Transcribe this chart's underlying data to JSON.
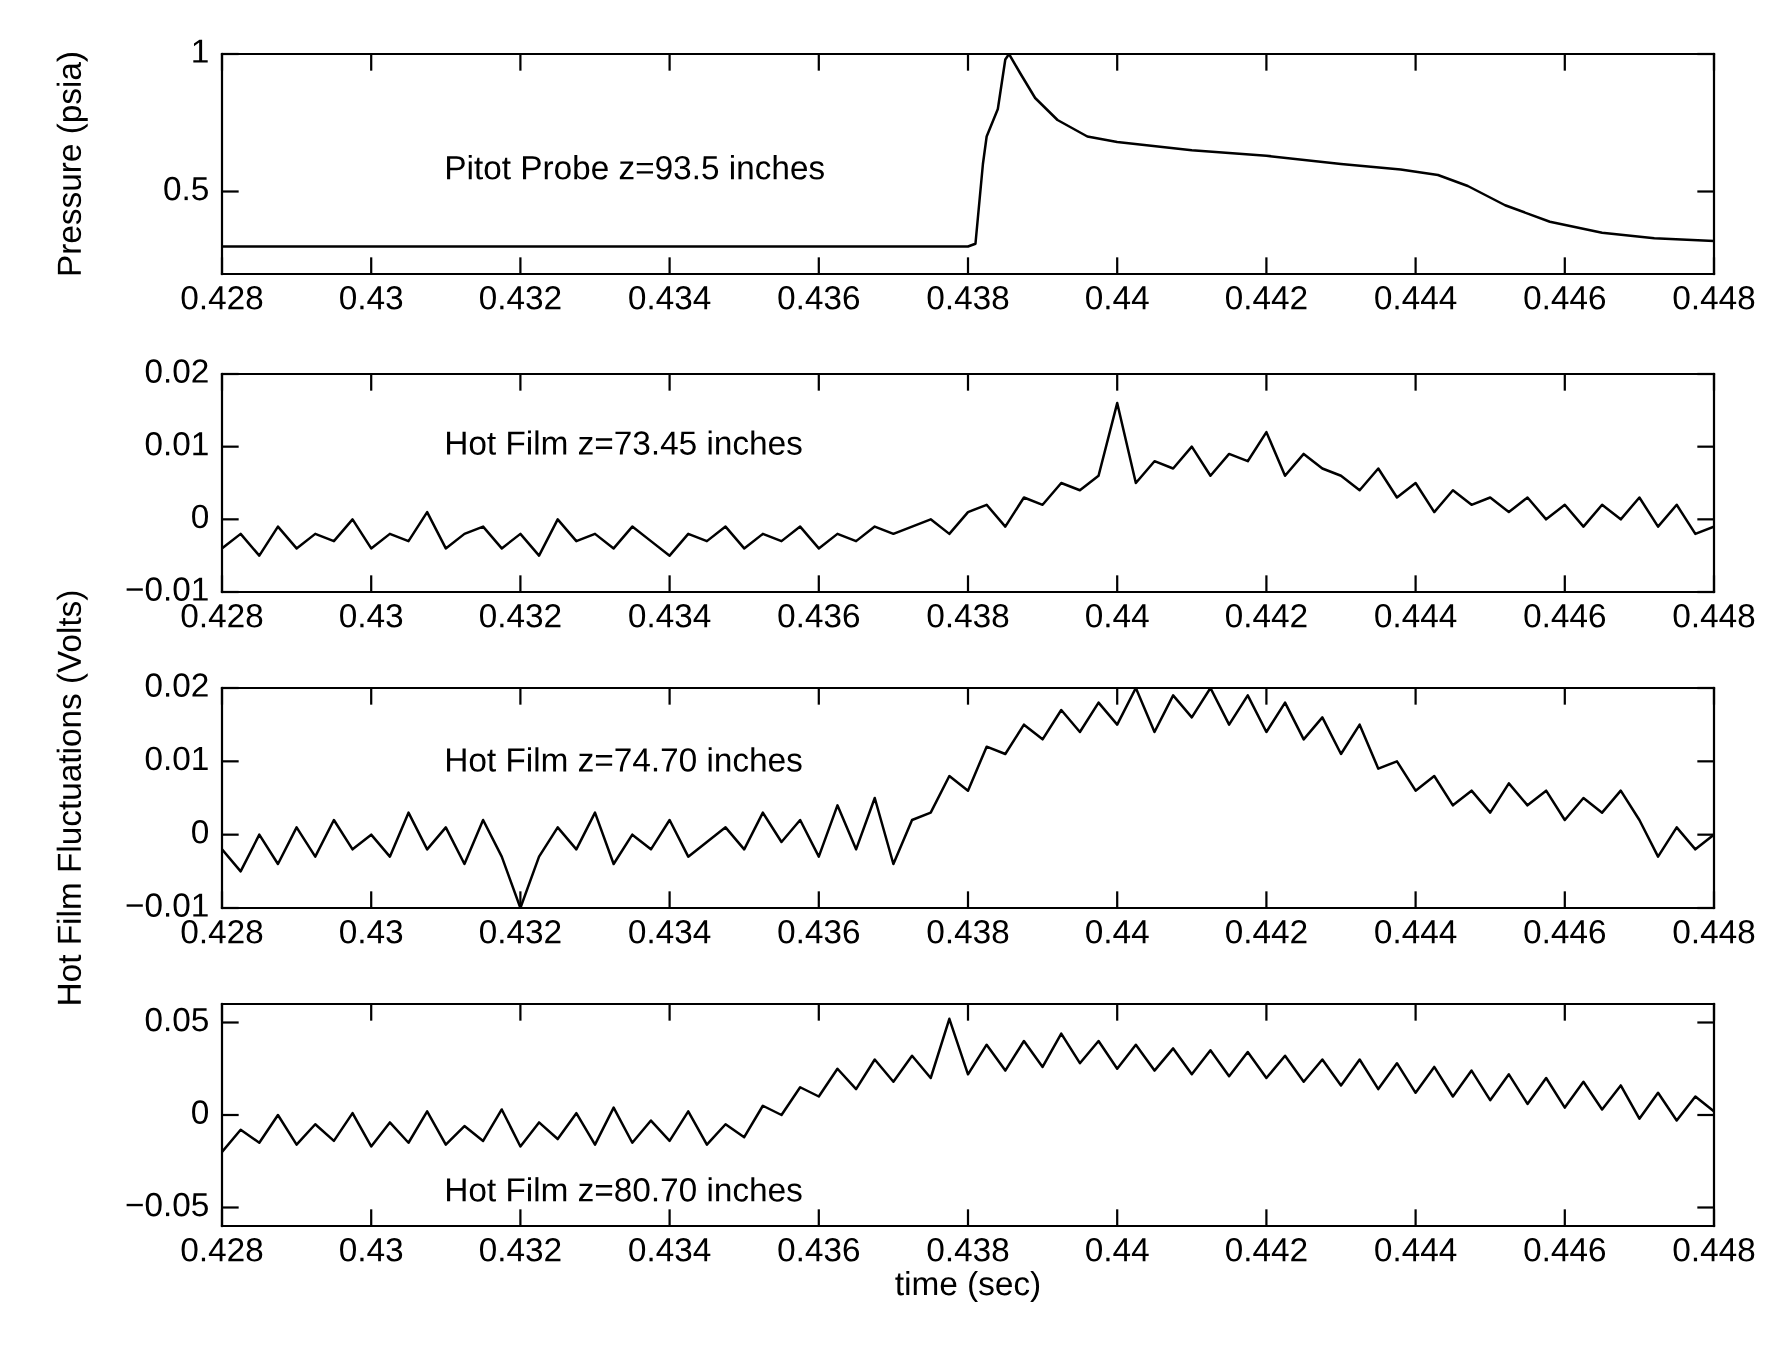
{
  "chart_data": [
    {
      "type": "line",
      "ylabel": "Pressure (psia)",
      "annotations": [
        "Pitot Probe z=93.5 inches"
      ],
      "color": "#000000",
      "x": [
        0.428,
        0.438,
        0.4381,
        0.4382,
        0.43825,
        0.4384,
        0.4385,
        0.43855,
        0.4387,
        0.4389,
        0.4392,
        0.4396,
        0.44,
        0.441,
        0.442,
        0.443,
        0.4438,
        0.4443,
        0.4447,
        0.4452,
        0.4458,
        0.4465,
        0.4472,
        0.448
      ],
      "values": [
        0.3,
        0.3,
        0.31,
        0.6,
        0.7,
        0.8,
        0.98,
        1.0,
        0.93,
        0.84,
        0.76,
        0.7,
        0.68,
        0.65,
        0.63,
        0.6,
        0.58,
        0.56,
        0.52,
        0.45,
        0.39,
        0.35,
        0.33,
        0.32
      ],
      "xlim": [
        0.428,
        0.448
      ],
      "xticks": [
        0.428,
        0.43,
        0.432,
        0.434,
        0.436,
        0.438,
        0.44,
        0.442,
        0.444,
        0.446,
        0.448
      ],
      "ylim": [
        0.2,
        1
      ],
      "yticks": [
        0.5,
        1
      ],
      "grid": false,
      "legend": false
    },
    {
      "type": "line",
      "annotations": [
        "Hot Film z=73.45 inches"
      ],
      "color": "#000000",
      "x": [
        0.428,
        0.42825,
        0.4285,
        0.42875,
        0.429,
        0.42925,
        0.4295,
        0.42975,
        0.43,
        0.43025,
        0.4305,
        0.43075,
        0.431,
        0.43125,
        0.4315,
        0.43175,
        0.432,
        0.43225,
        0.4325,
        0.43275,
        0.433,
        0.43325,
        0.4335,
        0.43375,
        0.434,
        0.43425,
        0.4345,
        0.43475,
        0.435,
        0.43525,
        0.4355,
        0.43575,
        0.436,
        0.43625,
        0.4365,
        0.43675,
        0.437,
        0.43725,
        0.4375,
        0.43775,
        0.438,
        0.43825,
        0.4385,
        0.43875,
        0.439,
        0.43925,
        0.4395,
        0.43975,
        0.44,
        0.44025,
        0.4405,
        0.44075,
        0.441,
        0.44125,
        0.4415,
        0.44175,
        0.442,
        0.44225,
        0.4425,
        0.44275,
        0.443,
        0.44325,
        0.4435,
        0.44375,
        0.444,
        0.44425,
        0.4445,
        0.44475,
        0.445,
        0.44525,
        0.4455,
        0.44575,
        0.446,
        0.44625,
        0.4465,
        0.44675,
        0.447,
        0.44725,
        0.4475,
        0.44775,
        0.448
      ],
      "values": [
        -0.004,
        -0.002,
        -0.005,
        -0.001,
        -0.004,
        -0.002,
        -0.003,
        0.0,
        -0.004,
        -0.002,
        -0.003,
        0.001,
        -0.004,
        -0.002,
        -0.001,
        -0.004,
        -0.002,
        -0.005,
        0.0,
        -0.003,
        -0.002,
        -0.004,
        -0.001,
        -0.003,
        -0.005,
        -0.002,
        -0.003,
        -0.001,
        -0.004,
        -0.002,
        -0.003,
        -0.001,
        -0.004,
        -0.002,
        -0.003,
        -0.001,
        -0.002,
        -0.001,
        0.0,
        -0.002,
        0.001,
        0.002,
        -0.001,
        0.003,
        0.002,
        0.005,
        0.004,
        0.006,
        0.016,
        0.005,
        0.008,
        0.007,
        0.01,
        0.006,
        0.009,
        0.008,
        0.012,
        0.006,
        0.009,
        0.007,
        0.006,
        0.004,
        0.007,
        0.003,
        0.005,
        0.001,
        0.004,
        0.002,
        0.003,
        0.001,
        0.003,
        0.0,
        0.002,
        -0.001,
        0.002,
        0.0,
        0.003,
        -0.001,
        0.002,
        -0.002,
        -0.001
      ],
      "xlim": [
        0.428,
        0.448
      ],
      "xticks": [
        0.428,
        0.43,
        0.432,
        0.434,
        0.436,
        0.438,
        0.44,
        0.442,
        0.444,
        0.446,
        0.448
      ],
      "ylim": [
        -0.01,
        0.02
      ],
      "yticks": [
        -0.01,
        0,
        0.01,
        0.02
      ],
      "grid": false,
      "legend": false
    },
    {
      "type": "line",
      "ylabel": "Hot Film Fluctuations (Volts)",
      "annotations": [
        "Hot Film z=74.70 inches"
      ],
      "color": "#000000",
      "x": [
        0.428,
        0.42825,
        0.4285,
        0.42875,
        0.429,
        0.42925,
        0.4295,
        0.42975,
        0.43,
        0.43025,
        0.4305,
        0.43075,
        0.431,
        0.43125,
        0.4315,
        0.43175,
        0.432,
        0.43225,
        0.4325,
        0.43275,
        0.433,
        0.43325,
        0.4335,
        0.43375,
        0.434,
        0.43425,
        0.4345,
        0.43475,
        0.435,
        0.43525,
        0.4355,
        0.43575,
        0.436,
        0.43625,
        0.4365,
        0.43675,
        0.437,
        0.43725,
        0.4375,
        0.43775,
        0.438,
        0.43825,
        0.4385,
        0.43875,
        0.439,
        0.43925,
        0.4395,
        0.43975,
        0.44,
        0.44025,
        0.4405,
        0.44075,
        0.441,
        0.44125,
        0.4415,
        0.44175,
        0.442,
        0.44225,
        0.4425,
        0.44275,
        0.443,
        0.44325,
        0.4435,
        0.44375,
        0.444,
        0.44425,
        0.4445,
        0.44475,
        0.445,
        0.44525,
        0.4455,
        0.44575,
        0.446,
        0.44625,
        0.4465,
        0.44675,
        0.447,
        0.44725,
        0.4475,
        0.44775,
        0.448
      ],
      "values": [
        -0.002,
        -0.005,
        0.0,
        -0.004,
        0.001,
        -0.003,
        0.002,
        -0.002,
        0.0,
        -0.003,
        0.003,
        -0.002,
        0.001,
        -0.004,
        0.002,
        -0.003,
        -0.01,
        -0.003,
        0.001,
        -0.002,
        0.003,
        -0.004,
        0.0,
        -0.002,
        0.002,
        -0.003,
        -0.001,
        0.001,
        -0.002,
        0.003,
        -0.001,
        0.002,
        -0.003,
        0.004,
        -0.002,
        0.005,
        -0.004,
        0.002,
        0.003,
        0.008,
        0.006,
        0.012,
        0.011,
        0.015,
        0.013,
        0.017,
        0.014,
        0.018,
        0.015,
        0.02,
        0.014,
        0.019,
        0.016,
        0.02,
        0.015,
        0.019,
        0.014,
        0.018,
        0.013,
        0.016,
        0.011,
        0.015,
        0.009,
        0.01,
        0.006,
        0.008,
        0.004,
        0.006,
        0.003,
        0.007,
        0.004,
        0.006,
        0.002,
        0.005,
        0.003,
        0.006,
        0.002,
        -0.003,
        0.001,
        -0.002,
        0.0
      ],
      "xlim": [
        0.428,
        0.448
      ],
      "xticks": [
        0.428,
        0.43,
        0.432,
        0.434,
        0.436,
        0.438,
        0.44,
        0.442,
        0.444,
        0.446,
        0.448
      ],
      "ylim": [
        -0.01,
        0.02
      ],
      "yticks": [
        -0.01,
        0,
        0.01,
        0.02
      ],
      "grid": false,
      "legend": false
    },
    {
      "type": "line",
      "xlabel": "time (sec)",
      "annotations": [
        "Hot Film z=80.70 inches"
      ],
      "color": "#000000",
      "x": [
        0.428,
        0.42825,
        0.4285,
        0.42875,
        0.429,
        0.42925,
        0.4295,
        0.42975,
        0.43,
        0.43025,
        0.4305,
        0.43075,
        0.431,
        0.43125,
        0.4315,
        0.43175,
        0.432,
        0.43225,
        0.4325,
        0.43275,
        0.433,
        0.43325,
        0.4335,
        0.43375,
        0.434,
        0.43425,
        0.4345,
        0.43475,
        0.435,
        0.43525,
        0.4355,
        0.43575,
        0.436,
        0.43625,
        0.4365,
        0.43675,
        0.437,
        0.43725,
        0.4375,
        0.43775,
        0.438,
        0.43825,
        0.4385,
        0.43875,
        0.439,
        0.43925,
        0.4395,
        0.43975,
        0.44,
        0.44025,
        0.4405,
        0.44075,
        0.441,
        0.44125,
        0.4415,
        0.44175,
        0.442,
        0.44225,
        0.4425,
        0.44275,
        0.443,
        0.44325,
        0.4435,
        0.44375,
        0.444,
        0.44425,
        0.4445,
        0.44475,
        0.445,
        0.44525,
        0.4455,
        0.44575,
        0.446,
        0.44625,
        0.4465,
        0.44675,
        0.447,
        0.44725,
        0.4475,
        0.44775,
        0.448
      ],
      "values": [
        -0.02,
        -0.008,
        -0.015,
        0.0,
        -0.016,
        -0.005,
        -0.014,
        0.001,
        -0.017,
        -0.004,
        -0.015,
        0.002,
        -0.016,
        -0.006,
        -0.014,
        0.003,
        -0.017,
        -0.004,
        -0.013,
        0.001,
        -0.016,
        0.004,
        -0.015,
        -0.003,
        -0.014,
        0.002,
        -0.016,
        -0.005,
        -0.012,
        0.005,
        0.0,
        0.015,
        0.01,
        0.025,
        0.014,
        0.03,
        0.018,
        0.032,
        0.02,
        0.052,
        0.022,
        0.038,
        0.024,
        0.04,
        0.026,
        0.044,
        0.028,
        0.04,
        0.025,
        0.038,
        0.024,
        0.036,
        0.022,
        0.035,
        0.021,
        0.034,
        0.02,
        0.032,
        0.018,
        0.03,
        0.016,
        0.03,
        0.014,
        0.028,
        0.012,
        0.026,
        0.01,
        0.024,
        0.008,
        0.022,
        0.006,
        0.02,
        0.004,
        0.018,
        0.003,
        0.016,
        -0.002,
        0.012,
        -0.003,
        0.01,
        0.002
      ],
      "xlim": [
        0.428,
        0.448
      ],
      "xticks": [
        0.428,
        0.43,
        0.432,
        0.434,
        0.436,
        0.438,
        0.44,
        0.442,
        0.444,
        0.446,
        0.448
      ],
      "ylim": [
        -0.06,
        0.06
      ],
      "yticks": [
        -0.05,
        0,
        0.05
      ],
      "grid": false,
      "legend": false
    }
  ]
}
